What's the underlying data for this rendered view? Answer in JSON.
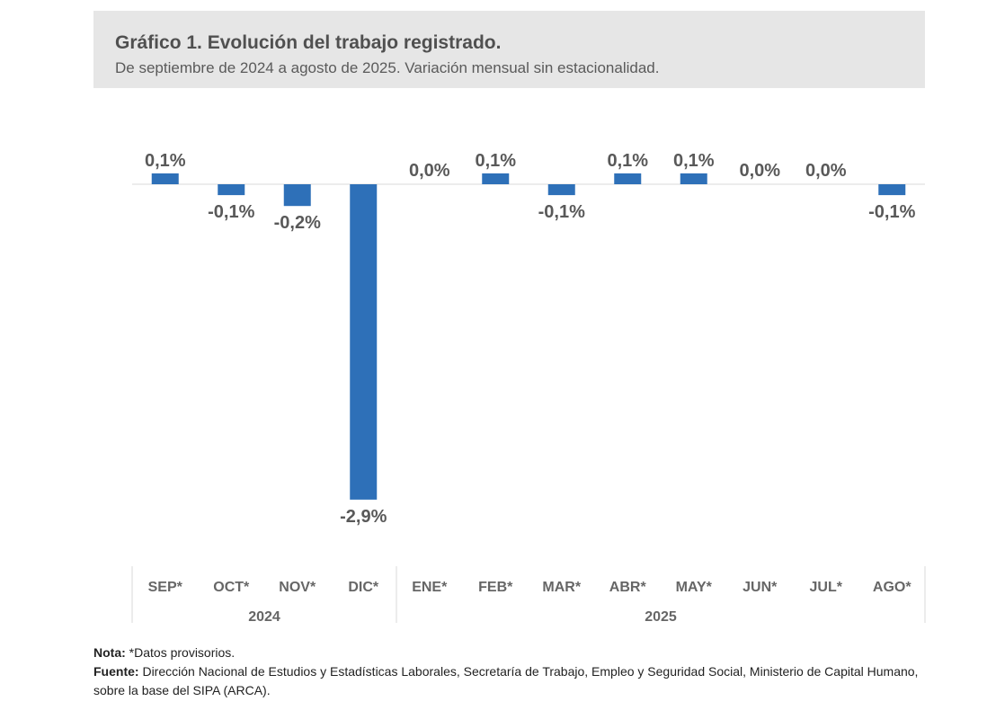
{
  "header": {
    "title": "Gráfico 1. Evolución del trabajo registrado.",
    "subtitle": "De septiembre de 2024 a agosto de 2025. Variación mensual sin estacionalidad."
  },
  "chart_data": {
    "type": "bar",
    "title": "Gráfico 1. Evolución del trabajo registrado.",
    "subtitle": "De septiembre de 2024 a agosto de 2025. Variación mensual sin estacionalidad.",
    "categories": [
      "SEP*",
      "OCT*",
      "NOV*",
      "DIC*",
      "ENE*",
      "FEB*",
      "MAR*",
      "ABR*",
      "MAY*",
      "JUN*",
      "JUL*",
      "AGO*"
    ],
    "groups": [
      {
        "label": "2024",
        "count": 4
      },
      {
        "label": "2025",
        "count": 8
      }
    ],
    "values": [
      0.1,
      -0.1,
      -0.2,
      -2.9,
      0.0,
      0.1,
      -0.1,
      0.1,
      0.1,
      0.0,
      0.0,
      -0.1
    ],
    "labels": [
      "0,1%",
      "-0,1%",
      "-0,2%",
      "-2,9%",
      "0,0%",
      "0,1%",
      "-0,1%",
      "0,1%",
      "0,1%",
      "0,0%",
      "0,0%",
      "-0,1%"
    ],
    "unit": "%",
    "grid": false,
    "bar_color": "#2e70b8",
    "label_color": "#595959"
  },
  "notes": {
    "nota_label": "Nota:",
    "nota_text": " *Datos provisorios.",
    "fuente_label": "Fuente:",
    "fuente_text": " Dirección Nacional de Estudios y Estadísticas Laborales, Secretaría de Trabajo, Empleo y Seguridad Social, Ministerio de Capital Humano, sobre la base del SIPA (ARCA)."
  }
}
